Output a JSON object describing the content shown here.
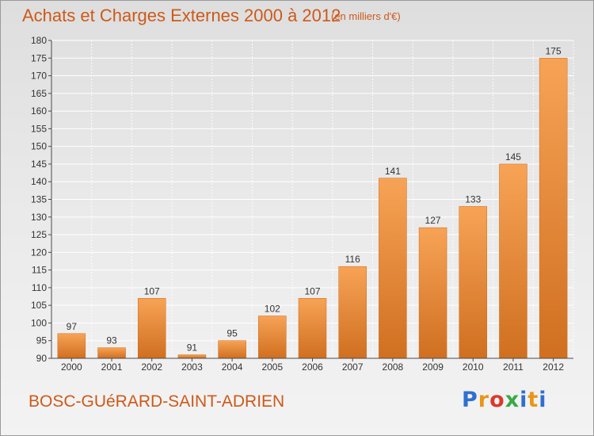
{
  "header": {
    "title": "Achats et Charges Externes 2000 à 2012",
    "subtitle": "(en milliers d'€)"
  },
  "footer": {
    "commune": "BOSC-GUéRARD-SAINT-ADRIEN",
    "logo_letters": [
      "P",
      "r",
      "o",
      "x",
      "i",
      "t",
      "i"
    ],
    "logo_colors": [
      "#2f6fcf",
      "#e8961a",
      "#d93a2a",
      "#3aa847",
      "#2f6fcf",
      "#e8961a",
      "#2f6fcf"
    ]
  },
  "chart_data": {
    "type": "bar",
    "categories": [
      "2000",
      "2001",
      "2002",
      "2003",
      "2004",
      "2005",
      "2006",
      "2007",
      "2008",
      "2009",
      "2010",
      "2011",
      "2012"
    ],
    "values": [
      97,
      93,
      107,
      91,
      95,
      102,
      107,
      116,
      141,
      127,
      133,
      145,
      175
    ],
    "title": "Achats et Charges Externes 2000 à 2012",
    "subtitle": "(en milliers d'€)",
    "xlabel": "",
    "ylabel": "",
    "ylim": [
      90,
      180
    ],
    "yticks": [
      90,
      95,
      100,
      105,
      110,
      115,
      120,
      125,
      130,
      135,
      140,
      145,
      150,
      155,
      160,
      165,
      170,
      175,
      180
    ],
    "grid": true,
    "bar_color": "#f0903a",
    "bar_color_dark": "#cf6a1c",
    "grid_color": "#ffffff",
    "axis_color": "#4a4a4a",
    "text_color": "#cc5a1a"
  }
}
